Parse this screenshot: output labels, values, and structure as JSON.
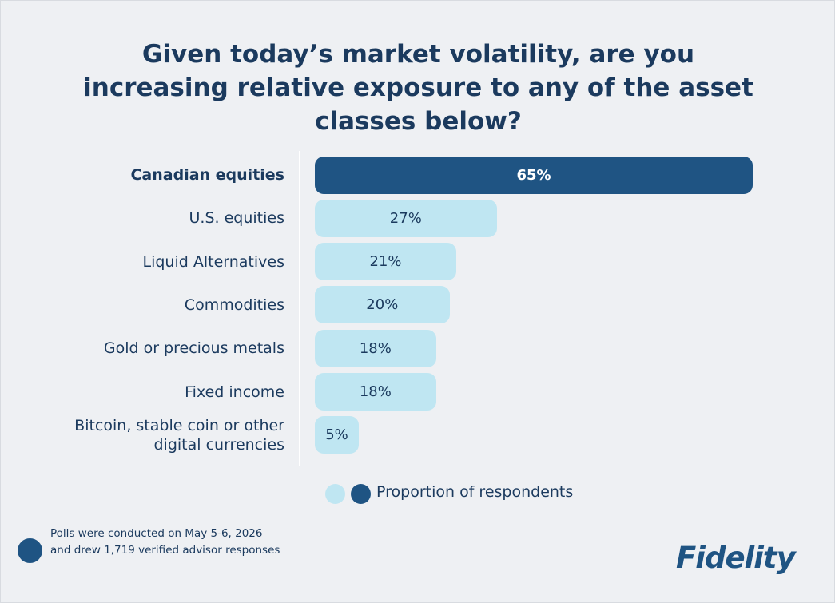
{
  "chart_data": {
    "type": "bar",
    "title": "Given today’s market volatility, are you increasing relative exposure to any of the asset classes below?",
    "categories": [
      "Canadian equities",
      "U.S. equities",
      "Liquid Alternatives",
      "Commodities",
      "Gold or precious metals",
      "Fixed income",
      "Bitcoin, stable coin or other digital currencies"
    ],
    "series": [
      {
        "name": "Proportion of respondents",
        "values": [
          65,
          27,
          21,
          20,
          18,
          18,
          5
        ],
        "value_labels": [
          "65%",
          "27%",
          "21%",
          "20%",
          "18%",
          "18%",
          "5%"
        ],
        "colors": [
          "#1f5483",
          "#bfe6f2",
          "#bfe6f2",
          "#bfe6f2",
          "#bfe6f2",
          "#bfe6f2",
          "#bfe6f2"
        ]
      }
    ],
    "legend_colors": [
      "#bfe6f2",
      "#1f5483"
    ],
    "note": "Polls were conducted on May 5-6, 2026 and drew 1,719 verified advisor responses",
    "logo": "Fidelity"
  }
}
